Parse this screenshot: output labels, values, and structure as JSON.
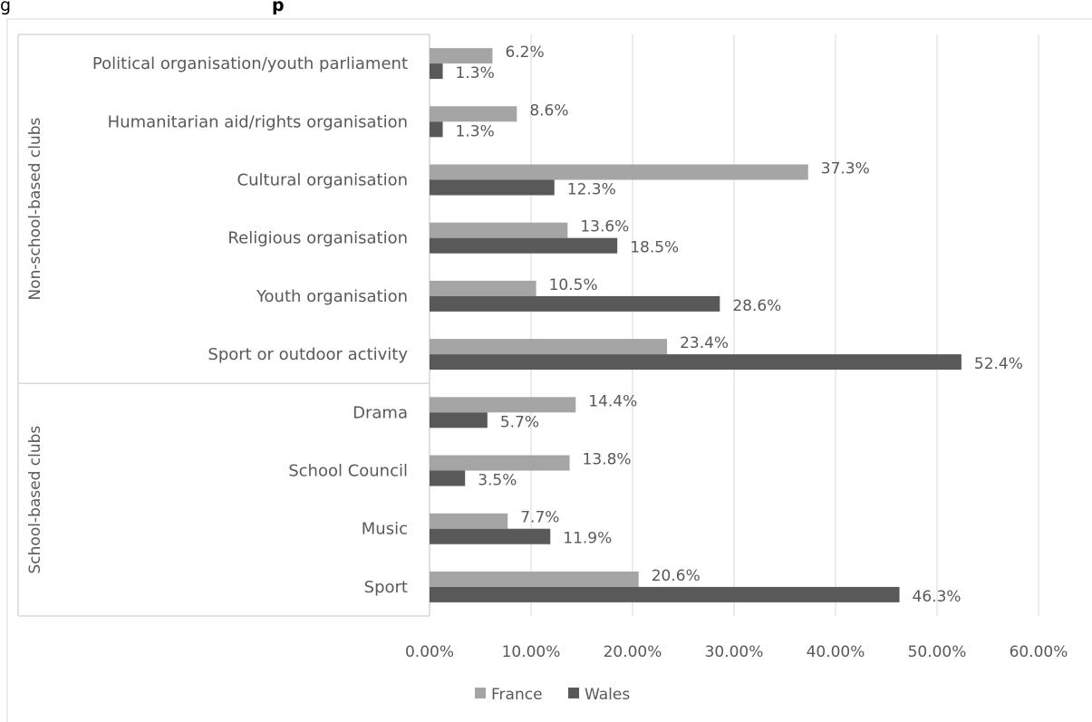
{
  "header_fragment": {
    "prefix": "g",
    "bold": "p"
  },
  "chart_data": {
    "type": "bar",
    "orientation": "horizontal",
    "title": "",
    "xlabel": "",
    "ylabel": "",
    "xlim": [
      0,
      60
    ],
    "x_ticks": [
      "0.00%",
      "10.00%",
      "20.00%",
      "30.00%",
      "40.00%",
      "50.00%",
      "60.00%"
    ],
    "grid": true,
    "legend_position": "bottom",
    "categories": [
      "Political organisation/youth parliament",
      "Humanitarian aid/rights organisation",
      "Cultural organisation",
      "Religious organisation",
      "Youth organisation",
      "Sport or outdoor activity",
      "Drama",
      "School Council",
      "Music",
      "Sport"
    ],
    "groups": [
      {
        "name": "Non-school-based clubs",
        "categories": 6
      },
      {
        "name": "School-based clubs",
        "categories": 4
      }
    ],
    "series": [
      {
        "name": "France",
        "color": "#a5a5a5",
        "values": [
          6.2,
          8.6,
          37.3,
          13.6,
          10.5,
          23.4,
          14.4,
          13.8,
          7.7,
          20.6
        ],
        "labels": [
          "6.2%",
          "8.6%",
          "37.3%",
          "13.6%",
          "10.5%",
          "23.4%",
          "14.4%",
          "13.8%",
          "7.7%",
          "20.6%"
        ]
      },
      {
        "name": "Wales",
        "color": "#595959",
        "values": [
          1.3,
          1.3,
          12.3,
          18.5,
          28.6,
          52.4,
          5.7,
          3.5,
          11.9,
          46.3
        ],
        "labels": [
          "1.3%",
          "1.3%",
          "12.3%",
          "18.5%",
          "28.6%",
          "52.4%",
          "5.7%",
          "3.5%",
          "11.9%",
          "46.3%"
        ]
      }
    ]
  }
}
